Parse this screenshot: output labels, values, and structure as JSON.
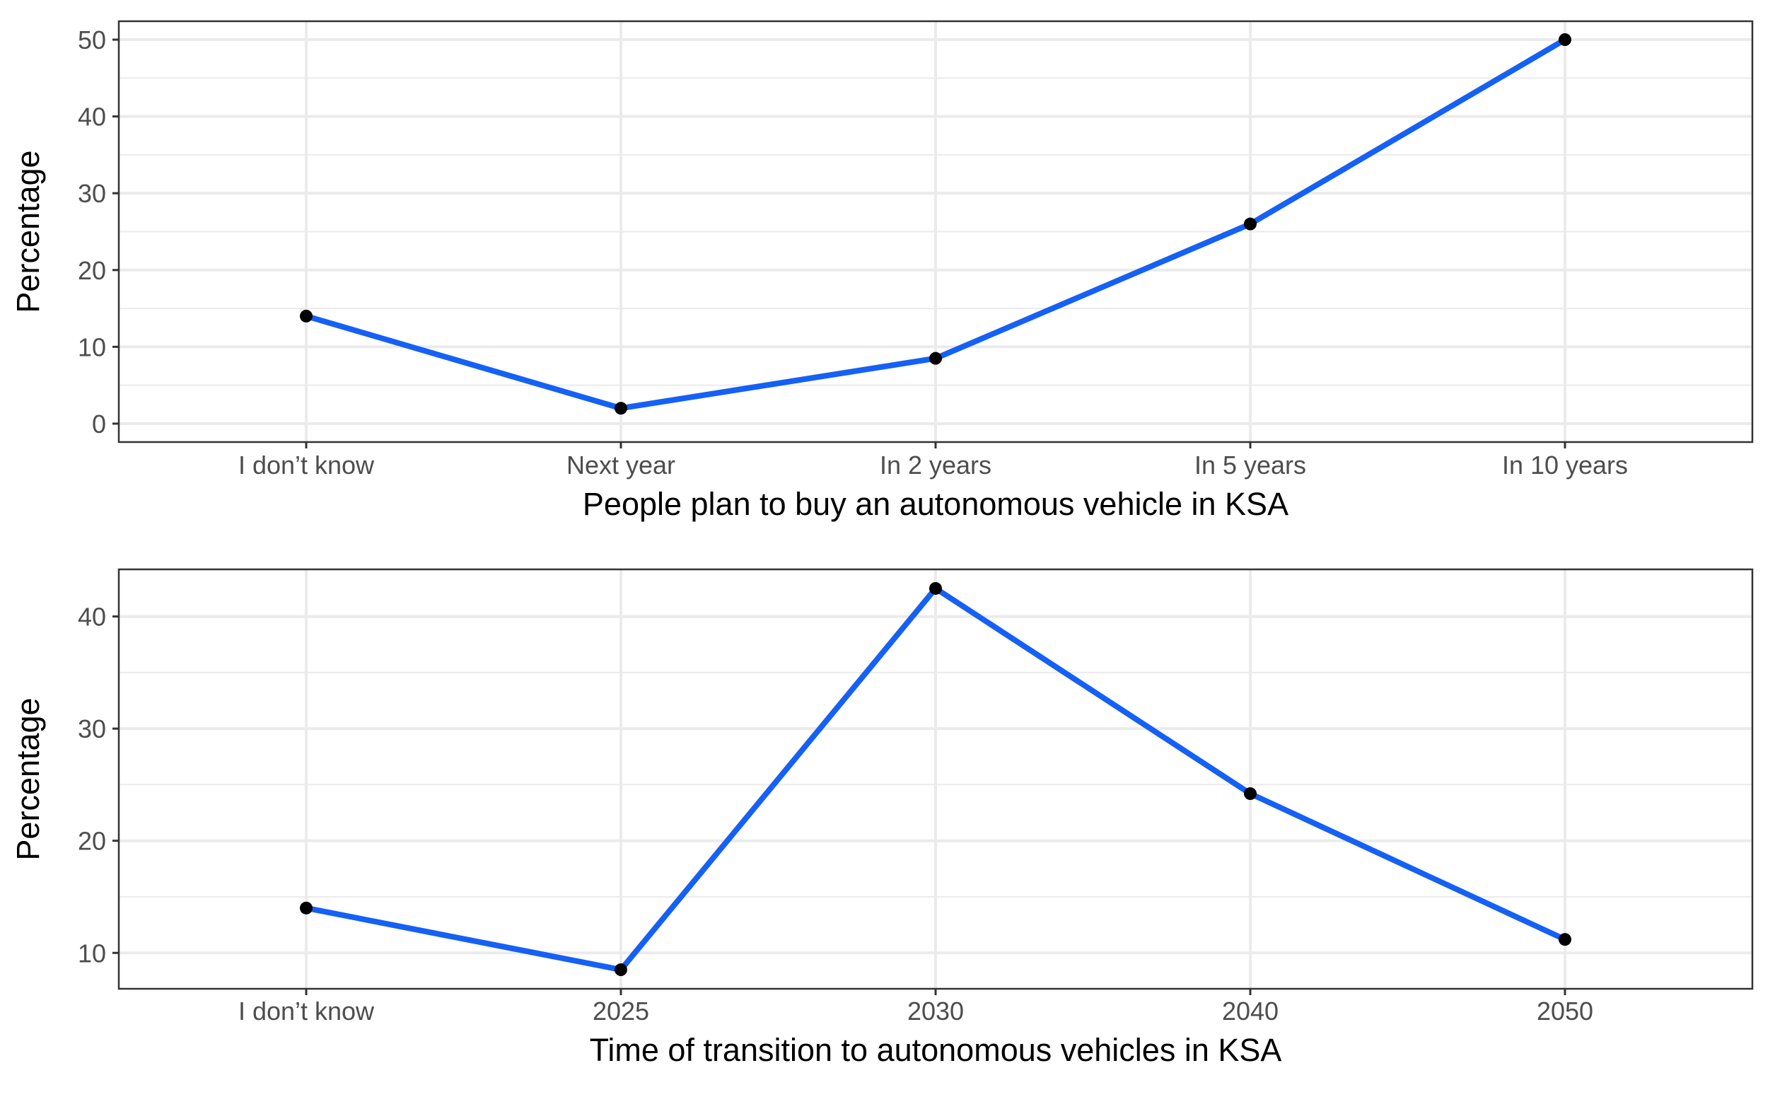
{
  "colors": {
    "line": "#1560f5",
    "point": "#000000",
    "grid": "#ebebeb",
    "panel_border": "#333333",
    "tick_text": "#4d4d4d"
  },
  "chart_data": [
    {
      "type": "line",
      "xlabel": "People plan to buy an autonomous vehicle in KSA",
      "ylabel": "Percentage",
      "categories": [
        "I don’t know",
        "Next year",
        "In 2 years",
        "In 5 years",
        "In 10 years"
      ],
      "values": [
        14,
        2,
        8.5,
        26,
        50
      ],
      "ylim": [
        -2.4,
        52.4
      ],
      "yticks": [
        0,
        10,
        20,
        30,
        40,
        50
      ],
      "grid": true,
      "markers": true
    },
    {
      "type": "line",
      "xlabel": "Time of transition to autonomous vehicles in KSA",
      "ylabel": "Percentage",
      "categories": [
        "I don’t know",
        "2025",
        "2030",
        "2040",
        "2050"
      ],
      "values": [
        14,
        8.5,
        42.5,
        24.2,
        11.2
      ],
      "ylim": [
        6.8,
        44.2
      ],
      "yticks": [
        10,
        20,
        30,
        40
      ],
      "grid": true,
      "markers": true
    }
  ]
}
